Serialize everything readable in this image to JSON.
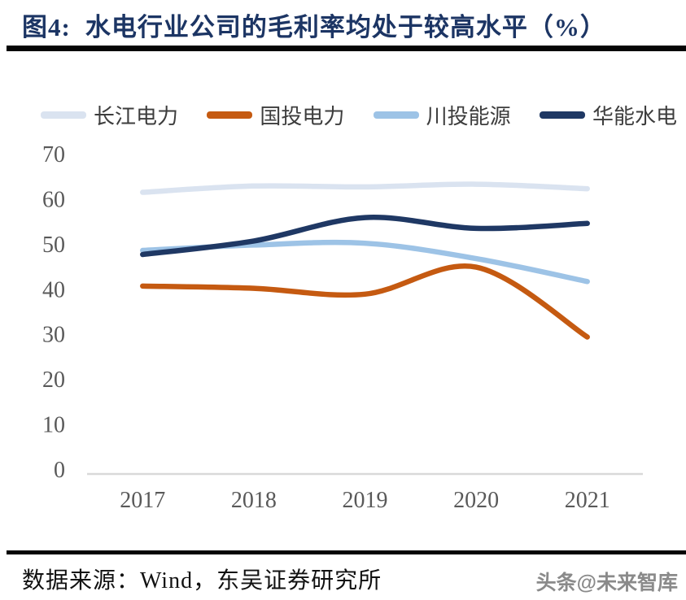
{
  "header": {
    "figure_label": "图4:",
    "title": "水电行业公司的毛利率均处于较高水平（%）",
    "title_color": "#1c3564"
  },
  "footer": {
    "source": "数据来源：Wind，东吴证券研究所",
    "watermark": "头条@未来智库"
  },
  "chart_data": {
    "type": "line",
    "title": "水电行业公司的毛利率均处于较高水平（%）",
    "categories": [
      "2017",
      "2018",
      "2019",
      "2020",
      "2021"
    ],
    "series": [
      {
        "name": "长江电力",
        "color": "#dae3f0",
        "values": [
          61.6,
          63.0,
          62.8,
          63.4,
          62.4
        ]
      },
      {
        "name": "国投电力",
        "color": "#c55a11",
        "values": [
          40.8,
          40.3,
          39.0,
          45.0,
          29.5
        ]
      },
      {
        "name": "川投能源",
        "color": "#9dc3e6",
        "values": [
          48.7,
          49.9,
          50.3,
          46.9,
          41.8
        ]
      },
      {
        "name": "华能水电",
        "color": "#1f3864",
        "values": [
          47.8,
          50.8,
          56.0,
          53.6,
          54.7
        ]
      }
    ],
    "xlabel": "",
    "ylabel": "",
    "ylim": [
      0,
      70
    ],
    "yticks": [
      0,
      10,
      20,
      30,
      40,
      50,
      60,
      70
    ],
    "grid": false,
    "legend_position": "top",
    "axis_line_color": "#d9d9d9",
    "tick_label_color": "#595959",
    "line_smoothing": "smooth"
  }
}
